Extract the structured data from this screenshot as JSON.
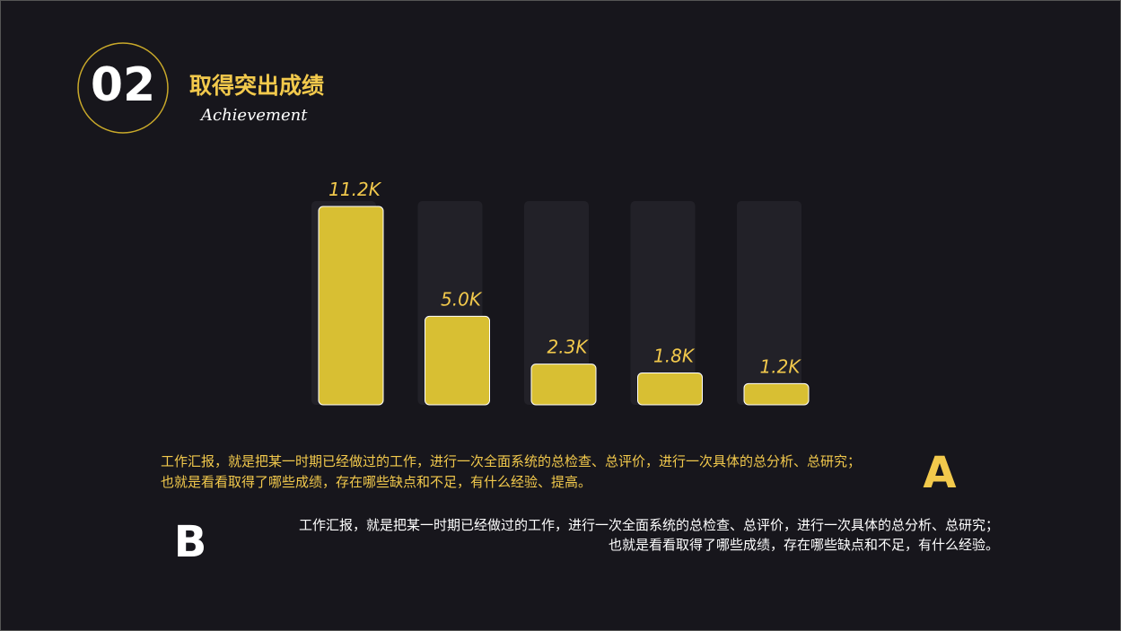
{
  "header": {
    "number": "02",
    "title": "取得突出成绩",
    "subtitle": "Achievement"
  },
  "chart_data": {
    "type": "bar",
    "categories": [
      null,
      null,
      null,
      null,
      null
    ],
    "values": [
      11.2,
      5.0,
      2.3,
      1.8,
      1.2
    ],
    "value_labels": [
      "11.2K",
      "5.0K",
      "2.3K",
      "1.8K",
      "1.2K"
    ],
    "color": "#d8bf33"
  },
  "blocks": [
    {
      "letter": "A",
      "lines": [
        "工作汇报，就是把某一时期已经做过的工作，进行一次全面系统的总检查、总评价，进行一次具体的总分析、总研究；",
        "也就是看看取得了哪些成绩，存在哪些缺点和不足，有什么经验、提高。"
      ]
    },
    {
      "letter": "B",
      "lines": [
        "工作汇报，就是把某一时期已经做过的工作，进行一次全面系统的总检查、总评价，进行一次具体的总分析、总研究；",
        "也就是看看取得了哪些成绩，存在哪些缺点和不足，有什么经验。"
      ]
    }
  ]
}
